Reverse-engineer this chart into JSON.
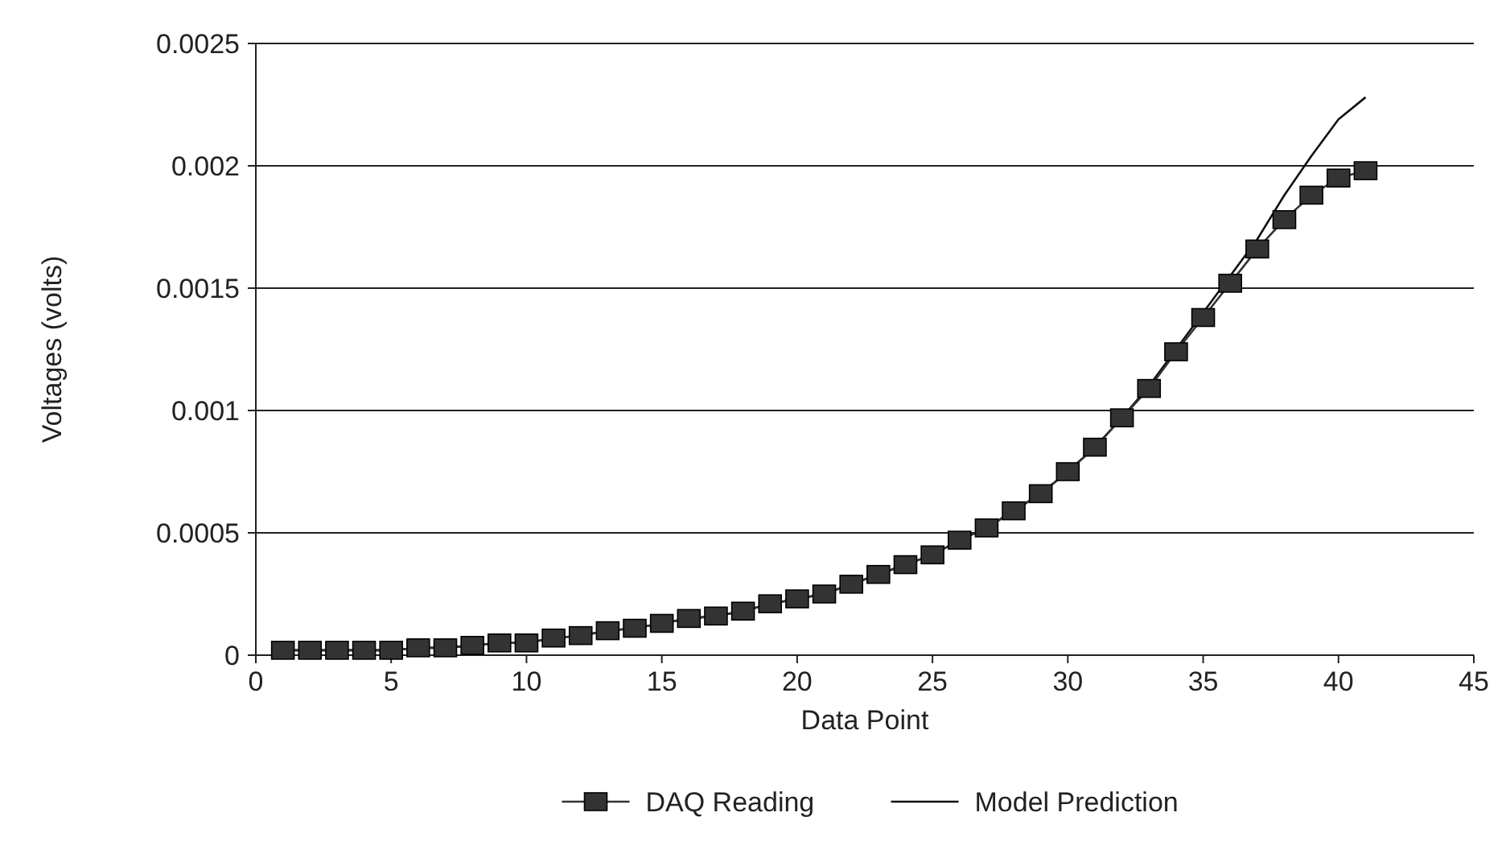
{
  "chart_data": {
    "type": "line",
    "xlabel": "Data Point",
    "ylabel": "Voltages (volts)",
    "x": [
      1,
      2,
      3,
      4,
      5,
      6,
      7,
      8,
      9,
      10,
      11,
      12,
      13,
      14,
      15,
      16,
      17,
      18,
      19,
      20,
      21,
      22,
      23,
      24,
      25,
      26,
      27,
      28,
      29,
      30,
      31,
      32,
      33,
      34,
      35,
      36,
      37,
      38,
      39,
      40,
      41
    ],
    "xlim": [
      0,
      45
    ],
    "xticks": [
      0,
      5,
      10,
      15,
      20,
      25,
      30,
      35,
      40,
      45
    ],
    "ylim": [
      0,
      0.0025
    ],
    "yticks": [
      {
        "value": 0,
        "label": "0"
      },
      {
        "value": 0.0005,
        "label": "0.0005"
      },
      {
        "value": 0.001,
        "label": "0.001"
      },
      {
        "value": 0.0015,
        "label": "0.0015"
      },
      {
        "value": 0.002,
        "label": "0.002"
      },
      {
        "value": 0.0025,
        "label": "0.0025"
      }
    ],
    "grid": "y",
    "legend": "bottom",
    "series": [
      {
        "name": "DAQ Reading",
        "color": "#333333",
        "marker": "square",
        "values": [
          2e-05,
          2e-05,
          2e-05,
          2e-05,
          2e-05,
          3e-05,
          3e-05,
          4e-05,
          5e-05,
          5e-05,
          7e-05,
          8e-05,
          0.0001,
          0.00011,
          0.00013,
          0.00015,
          0.00016,
          0.00018,
          0.00021,
          0.00023,
          0.00025,
          0.00029,
          0.00033,
          0.00037,
          0.00041,
          0.00047,
          0.00052,
          0.00059,
          0.00066,
          0.00075,
          0.00085,
          0.00097,
          0.00109,
          0.00124,
          0.00138,
          0.00152,
          0.00166,
          0.00178,
          0.00188,
          0.00195,
          0.00198
        ]
      },
      {
        "name": "Model Prediction",
        "color": "#111111",
        "marker": "none",
        "values": [
          2e-05,
          2e-05,
          2e-05,
          2e-05,
          2e-05,
          3e-05,
          3e-05,
          4e-05,
          5e-05,
          5e-05,
          7e-05,
          8e-05,
          0.0001,
          0.00011,
          0.00013,
          0.00015,
          0.00016,
          0.00018,
          0.00021,
          0.00023,
          0.00025,
          0.00029,
          0.00033,
          0.00037,
          0.00041,
          0.00047,
          0.00052,
          0.00059,
          0.00066,
          0.00075,
          0.00085,
          0.00097,
          0.0011,
          0.00125,
          0.0014,
          0.00155,
          0.0017,
          0.00188,
          0.00204,
          0.00219,
          0.00228
        ]
      }
    ]
  }
}
